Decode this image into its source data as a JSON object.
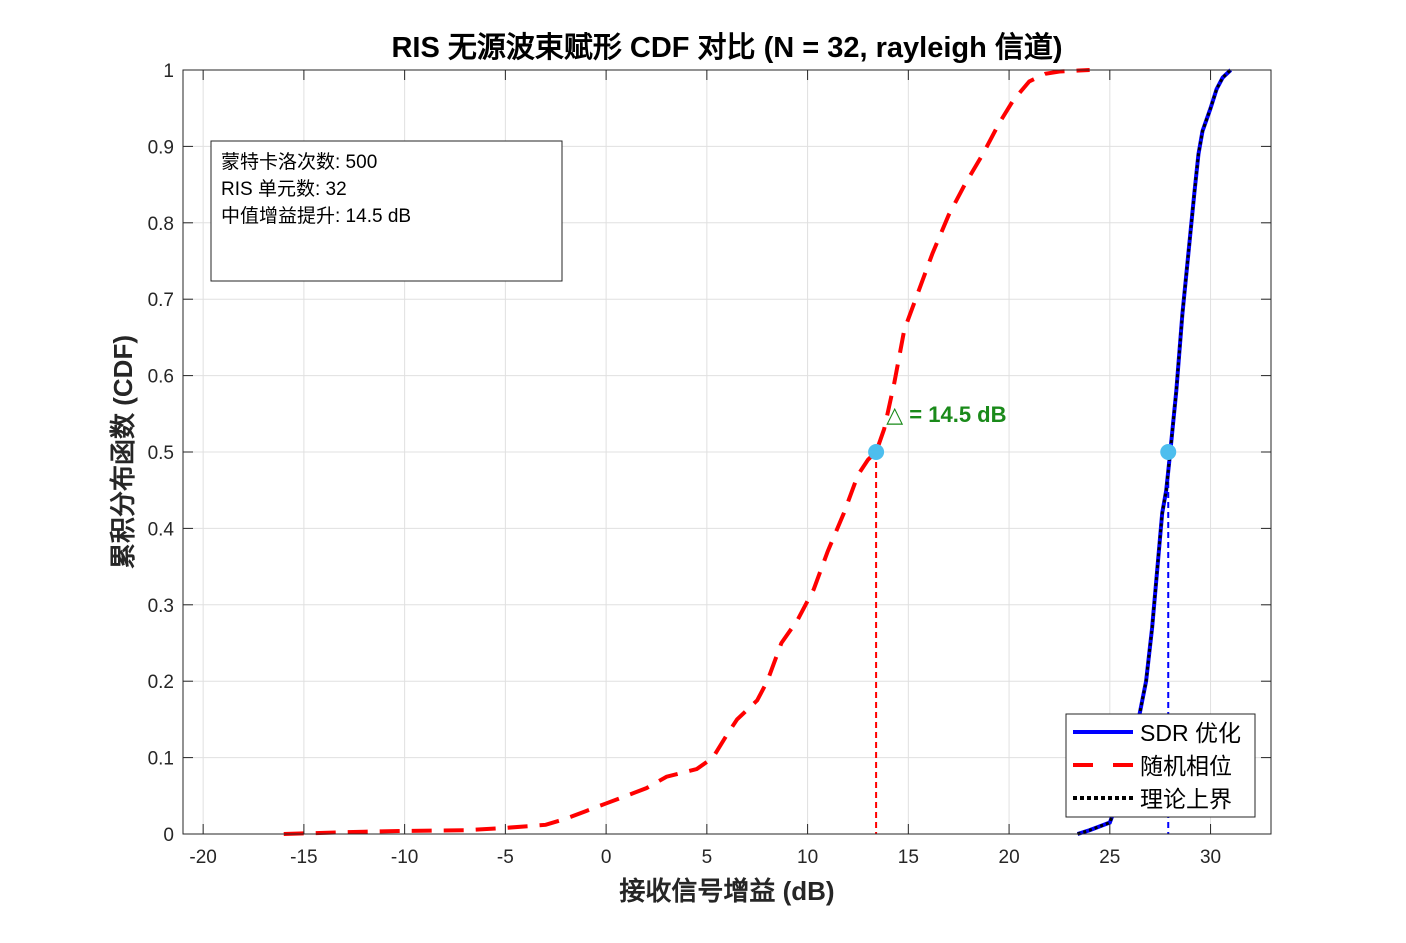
{
  "chart_data": {
    "type": "line",
    "title": "RIS 无源波束赋形 CDF 对比 (N = 32, rayleigh 信道)",
    "xlabel": "接收信号增益 (dB)",
    "ylabel": "累积分布函数 (CDF)",
    "xlim": [
      -21,
      33
    ],
    "ylim": [
      0,
      1
    ],
    "xticks": [
      -20,
      -15,
      -10,
      -5,
      0,
      5,
      10,
      15,
      20,
      25,
      30
    ],
    "yticks": [
      0,
      0.1,
      0.2,
      0.3,
      0.4,
      0.5,
      0.6,
      0.7,
      0.8,
      0.9,
      1
    ],
    "grid": true,
    "legend_position": "bottom-right",
    "series": [
      {
        "name": "SDR 优化",
        "color": "#0000ff",
        "style": "solid",
        "x": [
          23.4,
          24,
          24.5,
          25,
          25.5,
          26,
          26.5,
          26.8,
          27.1,
          27.3,
          27.6,
          27.8,
          28.0,
          28.3,
          28.6,
          28.9,
          29.2,
          29.4,
          29.6,
          30.0,
          30.3,
          30.6,
          31.0
        ],
        "y": [
          0,
          0.005,
          0.01,
          0.015,
          0.05,
          0.1,
          0.16,
          0.2,
          0.27,
          0.33,
          0.42,
          0.45,
          0.5,
          0.58,
          0.68,
          0.76,
          0.84,
          0.89,
          0.92,
          0.95,
          0.975,
          0.99,
          1.0
        ]
      },
      {
        "name": "随机相位",
        "color": "#ff0000",
        "style": "dashed",
        "x": [
          -16,
          -12,
          -10,
          -7,
          -5,
          -3,
          -2,
          -1,
          0,
          1,
          2,
          3,
          4.5,
          5.3,
          6,
          6.5,
          7.5,
          8,
          8.7,
          9.5,
          10.3,
          11,
          11.8,
          12.5,
          13,
          13.4,
          13.8,
          14.3,
          14.8,
          15.5,
          16.2,
          17,
          17.8,
          18.7,
          19.5,
          20.2,
          21,
          21.8,
          22.5,
          24
        ],
        "y": [
          0,
          0.003,
          0.004,
          0.005,
          0.008,
          0.012,
          0.02,
          0.03,
          0.04,
          0.05,
          0.06,
          0.075,
          0.085,
          0.1,
          0.13,
          0.15,
          0.175,
          0.2,
          0.25,
          0.28,
          0.32,
          0.37,
          0.42,
          0.47,
          0.49,
          0.5,
          0.53,
          0.59,
          0.66,
          0.71,
          0.76,
          0.81,
          0.85,
          0.89,
          0.93,
          0.96,
          0.985,
          0.995,
          0.998,
          1.0
        ]
      },
      {
        "name": "理论上界",
        "color": "#000000",
        "style": "dotted",
        "same_as": "SDR 优化"
      }
    ],
    "medians": [
      {
        "x": 13.4,
        "y": 0.5,
        "color": "#ff0000"
      },
      {
        "x": 27.9,
        "y": 0.5,
        "color": "#0000ff"
      }
    ],
    "marker_color": "#4dbeee",
    "annotation": {
      "text": "△ = 14.5 dB",
      "color": "#1a8a1a",
      "x": 14.5,
      "y": 0.55
    },
    "info_box": [
      "蒙特卡洛次数: 500",
      "RIS 单元数: 32",
      "中值增益提升: 14.5 dB"
    ]
  }
}
